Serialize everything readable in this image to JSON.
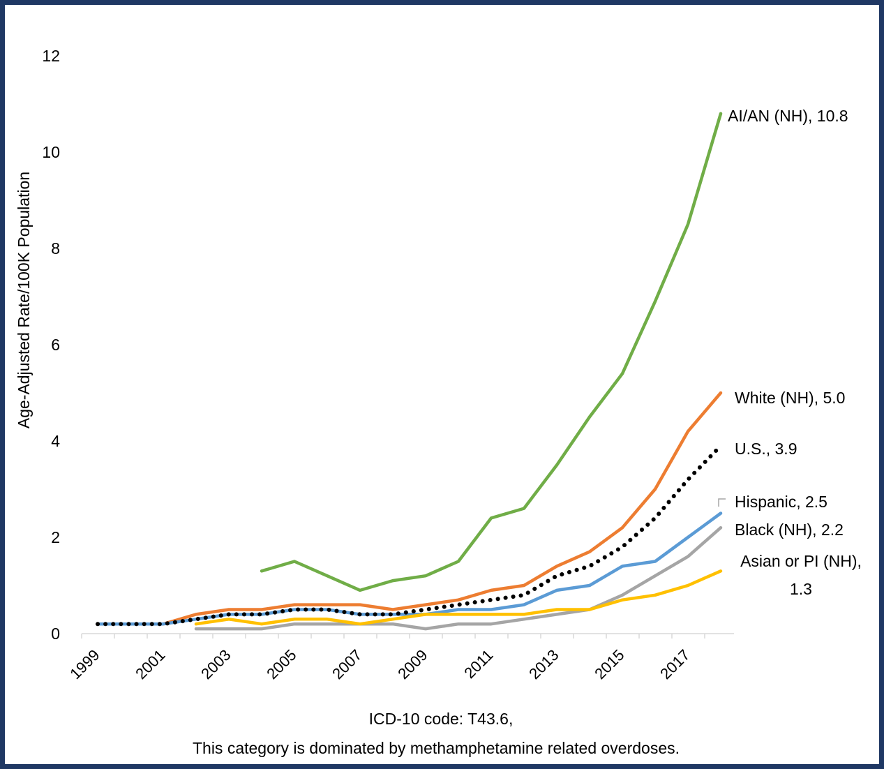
{
  "chart_data": {
    "type": "line",
    "ylabel": "Age-Adjusted Rate/100K Population",
    "xlabel_lines": [
      "ICD-10 code: T43.6,",
      "This category is dominated by methamphetamine related overdoses."
    ],
    "ylim": [
      0,
      12
    ],
    "yticks": [
      0,
      2,
      4,
      6,
      8,
      10,
      12
    ],
    "x": [
      1999,
      2000,
      2001,
      2002,
      2003,
      2004,
      2005,
      2006,
      2007,
      2008,
      2009,
      2010,
      2011,
      2012,
      2013,
      2014,
      2015,
      2016,
      2017,
      2018
    ],
    "xtick_labels": [
      "1999",
      "2001",
      "2003",
      "2005",
      "2007",
      "2009",
      "2011",
      "2013",
      "2015",
      "2017"
    ],
    "grid": false,
    "series": [
      {
        "key": "aian",
        "color": "#70ad47",
        "style": "solid",
        "label_lines": [
          "AI/AN (NH), 10.8"
        ],
        "values": [
          null,
          null,
          null,
          null,
          null,
          1.3,
          1.5,
          1.2,
          0.9,
          1.1,
          1.2,
          1.5,
          2.4,
          2.6,
          3.5,
          4.5,
          5.4,
          6.9,
          8.5,
          10.8
        ]
      },
      {
        "key": "white",
        "color": "#ed7d31",
        "style": "solid",
        "label_lines": [
          "White (NH), 5.0"
        ],
        "values": [
          0.2,
          0.2,
          0.2,
          0.4,
          0.5,
          0.5,
          0.6,
          0.6,
          0.6,
          0.5,
          0.6,
          0.7,
          0.9,
          1.0,
          1.4,
          1.7,
          2.2,
          3.0,
          4.2,
          5.0
        ]
      },
      {
        "key": "hispanic",
        "color": "#5b9bd5",
        "style": "solid",
        "label_lines": [
          "Hispanic, 2.5"
        ],
        "values": [
          0.2,
          0.2,
          0.2,
          0.3,
          0.4,
          0.4,
          0.5,
          0.5,
          0.4,
          0.4,
          0.4,
          0.5,
          0.5,
          0.6,
          0.9,
          1.0,
          1.4,
          1.5,
          2.0,
          2.5
        ]
      },
      {
        "key": "black",
        "color": "#a5a5a5",
        "style": "solid",
        "label_lines": [
          "Black (NH), 2.2"
        ],
        "values": [
          null,
          null,
          null,
          0.1,
          0.1,
          0.1,
          0.2,
          0.2,
          0.2,
          0.2,
          0.1,
          0.2,
          0.2,
          0.3,
          0.4,
          0.5,
          0.8,
          1.2,
          1.6,
          2.2
        ]
      },
      {
        "key": "asian",
        "color": "#ffc000",
        "style": "solid",
        "label_lines": [
          "Asian or PI (NH),",
          "1.3"
        ],
        "values": [
          null,
          null,
          null,
          0.2,
          0.3,
          0.2,
          0.3,
          0.3,
          0.2,
          0.3,
          0.4,
          0.4,
          0.4,
          0.4,
          0.5,
          0.5,
          0.7,
          0.8,
          1.0,
          1.3
        ]
      },
      {
        "key": "us",
        "color": "#000000",
        "style": "dotted",
        "label_lines": [
          "U.S., 3.9"
        ],
        "values": [
          0.2,
          0.2,
          0.2,
          0.3,
          0.4,
          0.4,
          0.5,
          0.5,
          0.4,
          0.4,
          0.5,
          0.6,
          0.7,
          0.8,
          1.2,
          1.4,
          1.8,
          2.4,
          3.2,
          3.9
        ]
      }
    ]
  }
}
